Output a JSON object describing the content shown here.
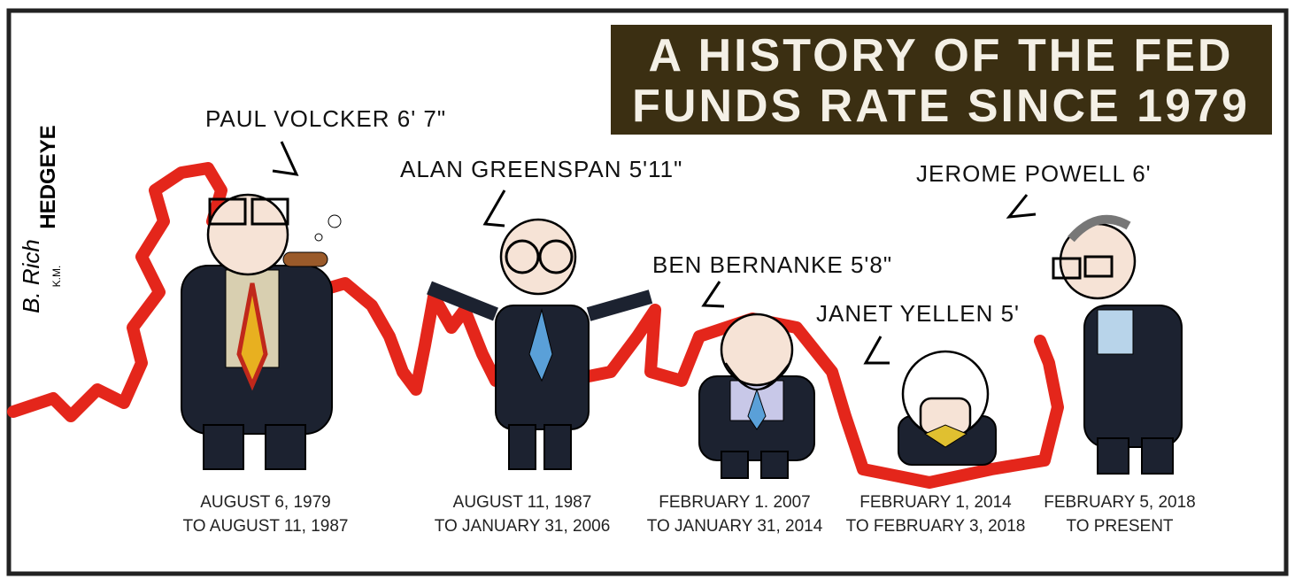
{
  "title": {
    "line1": "A HISTORY OF THE FED",
    "line2": "FUNDS RATE SINCE 1979"
  },
  "signature": {
    "brand": "HEDGEYE",
    "artist": "B. Rich",
    "initials": "K.M."
  },
  "figures": [
    {
      "label": "PAUL VOLCKER 6' 7\"",
      "from": "AUGUST 6, 1979",
      "to": "TO AUGUST 11, 1987"
    },
    {
      "label": "ALAN GREENSPAN 5'11\"",
      "from": "AUGUST 11, 1987",
      "to": "TO JANUARY 31, 2006"
    },
    {
      "label": "BEN BERNANKE 5'8\"",
      "from": "FEBRUARY 1. 2007",
      "to": "TO JANUARY 31, 2014"
    },
    {
      "label": "JANET YELLEN 5'",
      "from": "FEBRUARY 1, 2014",
      "to": "TO FEBRUARY 3, 2018"
    },
    {
      "label": "JEROME POWELL 6'",
      "from": "FEBRUARY 5, 2018",
      "to": "TO PRESENT"
    }
  ]
}
